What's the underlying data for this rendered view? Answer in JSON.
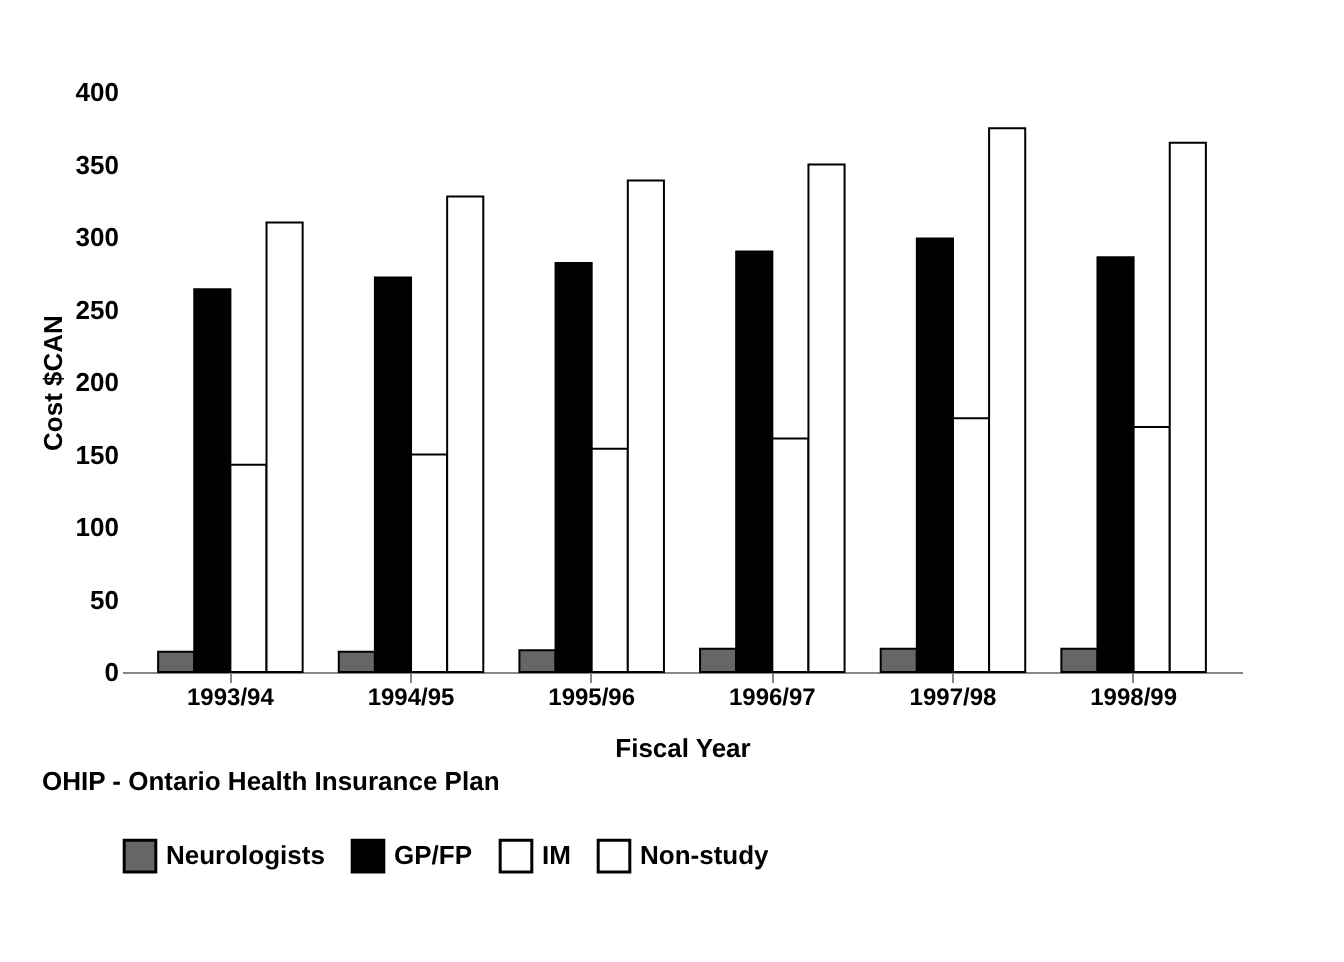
{
  "chart_data": {
    "type": "bar",
    "xlabel": "Fiscal Year",
    "ylabel": "Cost $CAN",
    "categories": [
      "1993/94",
      "1994/95",
      "1995/96",
      "1996/97",
      "1997/98",
      "1998/99"
    ],
    "series": [
      {
        "name": "Neurologists",
        "color": "#666666",
        "values": [
          14,
          14,
          15,
          16,
          16,
          16
        ]
      },
      {
        "name": "GP/FP",
        "color": "#000000",
        "values": [
          264,
          272,
          282,
          290,
          299,
          286
        ]
      },
      {
        "name": "IM",
        "color": "#ffffff",
        "values": [
          143,
          150,
          154,
          161,
          175,
          169
        ]
      },
      {
        "name": "Non-study",
        "color": "#ffffff",
        "values": [
          310,
          328,
          339,
          350,
          375,
          365
        ]
      }
    ],
    "ylim": [
      0,
      400
    ],
    "yticks": [
      0,
      50,
      100,
      150,
      200,
      250,
      300,
      350,
      400
    ],
    "grid": false,
    "legend": "bottom",
    "annotations": [
      "OHIP - Ontario Health Insurance Plan"
    ]
  }
}
